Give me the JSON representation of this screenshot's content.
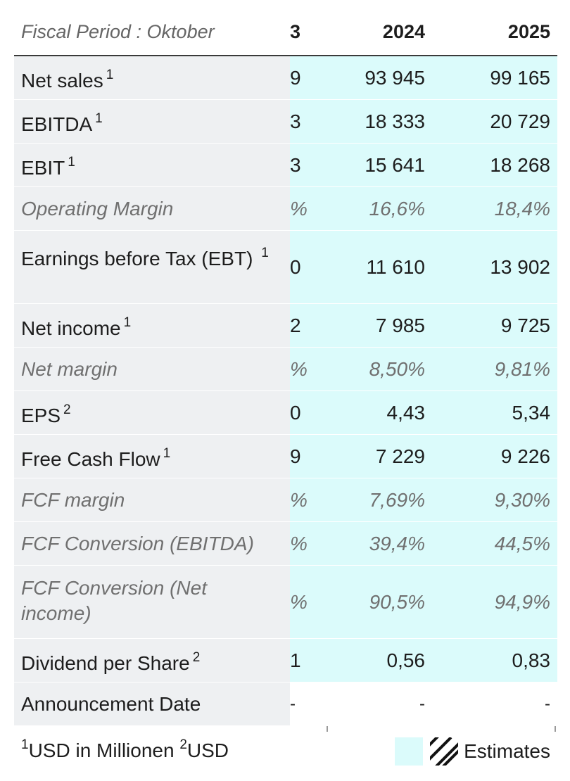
{
  "header": {
    "label": "Fiscal Period : Oktober",
    "col0": "3",
    "col1": "2024",
    "col2": "2025"
  },
  "rows": [
    {
      "label": "Net sales",
      "sup": "1",
      "v0": "9",
      "v1": "93 945",
      "v2": "99 165"
    },
    {
      "label": "EBITDA",
      "sup": "1",
      "v0": "3",
      "v1": "18 333",
      "v2": "20 729"
    },
    {
      "label": "EBIT",
      "sup": "1",
      "v0": "3",
      "v1": "15 641",
      "v2": "18 268"
    },
    {
      "label": "Operating Margin",
      "v0": "%",
      "v1": "16,6%",
      "v2": "18,4%"
    },
    {
      "label": "Earnings before Tax (EBT)",
      "sup": "1",
      "v0": "0",
      "v1": "11 610",
      "v2": "13 902"
    },
    {
      "label": "Net income",
      "sup": "1",
      "v0": "2",
      "v1": "7 985",
      "v2": "9 725"
    },
    {
      "label": "Net margin",
      "v0": "%",
      "v1": "8,50%",
      "v2": "9,81%"
    },
    {
      "label": "EPS",
      "sup": "2",
      "v0": "0",
      "v1": "4,43",
      "v2": "5,34"
    },
    {
      "label": "Free Cash Flow",
      "sup": "1",
      "v0": "9",
      "v1": "7 229",
      "v2": "9 226"
    },
    {
      "label": "FCF margin",
      "v0": "%",
      "v1": "7,69%",
      "v2": "9,30%"
    },
    {
      "label": "FCF Conversion (EBITDA)",
      "v0": "%",
      "v1": "39,4%",
      "v2": "44,5%"
    },
    {
      "label": "FCF Conversion (Net income)",
      "v0": "%",
      "v1": "90,5%",
      "v2": "94,9%"
    },
    {
      "label": "Dividend per Share",
      "sup": "2",
      "v0": "1",
      "v1": "0,56",
      "v2": "0,83"
    },
    {
      "label": "Announcement Date",
      "v0": "-",
      "v1": "-",
      "v2": "-"
    }
  ],
  "footer": {
    "sup1": "1",
    "note1": "USD in Millionen",
    "sup2": "2",
    "note2": "USD"
  },
  "legend": {
    "label": "Estimates",
    "estimate_color": "#dbfbfb"
  }
}
